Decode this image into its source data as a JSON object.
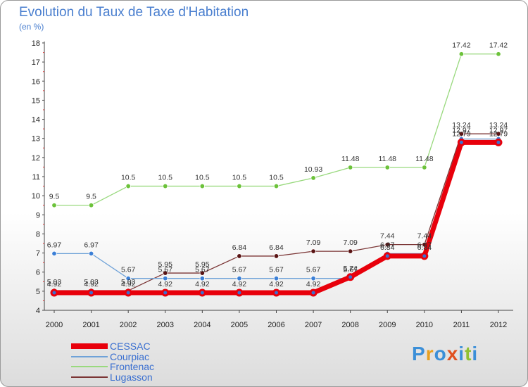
{
  "title": "Evolution du Taux de Taxe d'Habitation",
  "unit_label": "(en %)",
  "logo": {
    "text": "Proxiti"
  },
  "chart_data": {
    "type": "line",
    "title": "Evolution du Taux de Taxe d'Habitation",
    "ylabel": "(en %)",
    "x": [
      "2000",
      "2001",
      "2002",
      "2003",
      "2004",
      "2005",
      "2006",
      "2007",
      "2008",
      "2009",
      "2010",
      "2011",
      "2012"
    ],
    "ylim": [
      4,
      18
    ],
    "yticks": [
      4,
      5,
      6,
      7,
      8,
      9,
      10,
      11,
      12,
      13,
      14,
      15,
      16,
      17,
      18
    ],
    "grid": false,
    "legend_position": "bottom-left",
    "series": [
      {
        "name": "CESSAC",
        "color": "#e8000b",
        "marker": "#3b6fcf",
        "values": [
          4.92,
          4.92,
          4.92,
          4.92,
          4.92,
          4.92,
          4.92,
          4.92,
          5.74,
          6.84,
          6.84,
          12.79,
          12.79
        ]
      },
      {
        "name": "Courpiac",
        "color": "#6fa2d8",
        "marker": "#3b7fd6",
        "values": [
          6.97,
          6.97,
          5.67,
          5.67,
          5.67,
          5.67,
          5.67,
          5.67,
          5.67,
          6.97,
          6.97,
          12.97,
          12.97
        ]
      },
      {
        "name": "Frontenac",
        "color": "#99d97e",
        "marker": "#6cc23a",
        "values": [
          9.5,
          9.5,
          10.5,
          10.5,
          10.5,
          10.5,
          10.5,
          10.93,
          11.48,
          11.48,
          11.48,
          17.42,
          17.42
        ]
      },
      {
        "name": "Lugasson",
        "color": "#7b3535",
        "marker": "#5a1414",
        "values": [
          5.03,
          5.03,
          5.03,
          5.95,
          5.95,
          6.84,
          6.84,
          7.09,
          7.09,
          7.44,
          7.44,
          13.24,
          13.24
        ]
      }
    ]
  }
}
